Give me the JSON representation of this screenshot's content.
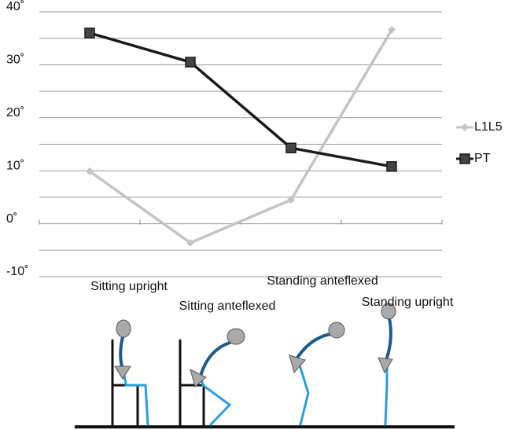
{
  "chart_data": {
    "type": "line",
    "categories": [
      "Sitting upright",
      "Sitting anteflexed",
      "Standing anteflexed",
      "Standing upright"
    ],
    "series": [
      {
        "name": "L1L5",
        "color": "#c4c4c4",
        "marker": "diamond",
        "values": [
          9.9,
          -3.6,
          4.5,
          36.6
        ]
      },
      {
        "name": "PT",
        "color": "#1a1a1a",
        "marker": "square",
        "values": [
          36,
          30.5,
          14.3,
          10.8
        ]
      }
    ],
    "ylim": [
      -10,
      40
    ],
    "yticks": [
      {
        "value": 40,
        "label": "40˚"
      },
      {
        "value": 30,
        "label": "30˚"
      },
      {
        "value": 20,
        "label": "20˚"
      },
      {
        "value": 10,
        "label": "10˚"
      },
      {
        "value": 0,
        "label": "0˚"
      },
      {
        "value": -10,
        "label": "-10˚"
      }
    ],
    "minor_yticks": [
      35,
      25,
      15,
      5,
      -5
    ],
    "grid": true,
    "legend": "right"
  }
}
